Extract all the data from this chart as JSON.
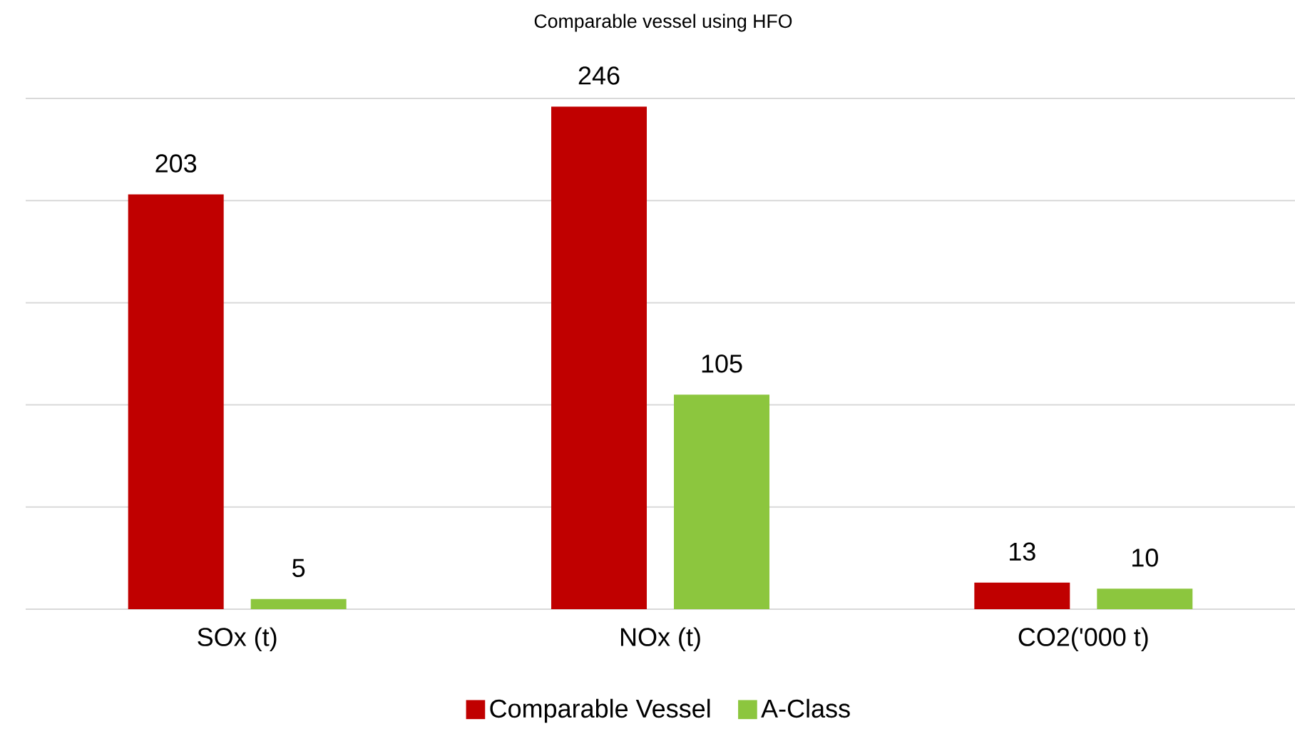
{
  "chart_data": {
    "type": "bar",
    "title": "Comparable vessel using HFO",
    "categories": [
      "SOx (t)",
      "NOx (t)",
      "CO2('000 t)"
    ],
    "series": [
      {
        "name": "Comparable Vessel",
        "color": "#c00000",
        "values": [
          203,
          246,
          13
        ]
      },
      {
        "name": "A-Class",
        "color": "#8cc63e",
        "values": [
          5,
          105,
          10
        ]
      }
    ],
    "ylim": [
      0,
      250
    ],
    "yticks": [
      {
        "value": 0,
        "label": null
      },
      {
        "value": 50,
        "label": null
      },
      {
        "value": 100,
        "label": null
      },
      {
        "value": 150,
        "label": null
      },
      {
        "value": 200,
        "label": null
      },
      {
        "value": 250,
        "label": null
      }
    ],
    "tick_labels": "x",
    "grid": "y",
    "legend": "bottom",
    "data_labels": true
  }
}
